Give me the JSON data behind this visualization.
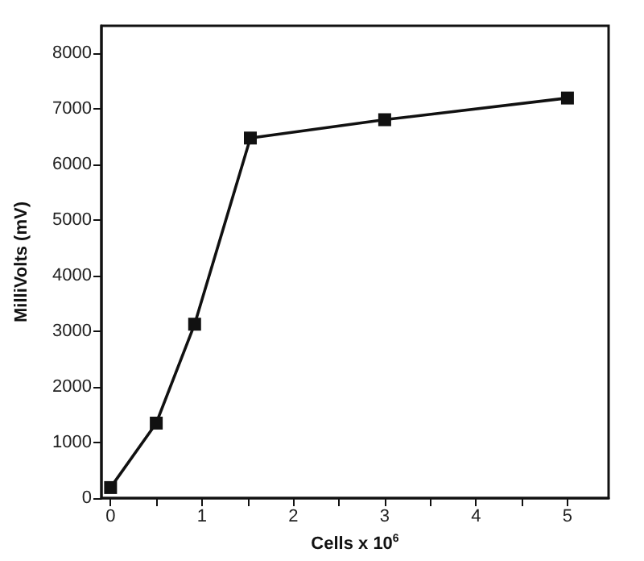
{
  "chart_data": {
    "type": "line",
    "xlabel": "Cells x 10$^{6}$",
    "ylabel": "MilliVolts (mV)",
    "x": [
      0,
      0.5,
      0.92,
      1.53,
      3,
      5
    ],
    "series": [
      {
        "color": "#111111",
        "values": [
          190,
          1350,
          3130,
          6480,
          6810,
          7200
        ]
      }
    ],
    "xlim": [
      -0.1,
      5.45
    ],
    "xticks": [
      0,
      {
        "value": 0.5,
        "label": null
      },
      1,
      {
        "value": 1.5,
        "label": null
      },
      2,
      {
        "value": 2.5,
        "label": null
      },
      3,
      {
        "value": 3.5,
        "label": null
      },
      4,
      {
        "value": 4.5,
        "label": null
      },
      5
    ],
    "ylim": [
      0,
      8500
    ],
    "yticks": [
      0,
      1000,
      2000,
      3000,
      4000,
      5000,
      6000,
      7000,
      8000
    ],
    "marker": "square",
    "line_style": "solid"
  }
}
